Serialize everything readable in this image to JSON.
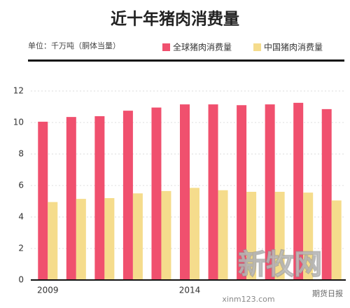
{
  "chart_data": {
    "type": "bar",
    "title": "近十年猪肉消费量",
    "subtitle": "单位：千万吨（胴体当量）",
    "categories": [
      "2009",
      null,
      null,
      null,
      null,
      "2014",
      null,
      null,
      null,
      null,
      null
    ],
    "series": [
      {
        "name": "全球猪肉消费量",
        "color": "#f0506e",
        "values": [
          10.05,
          10.35,
          10.4,
          10.75,
          10.95,
          11.15,
          11.15,
          11.1,
          11.15,
          11.25,
          10.85
        ]
      },
      {
        "name": "中国猪肉消费量",
        "color": "#f5dc8c",
        "values": [
          4.95,
          5.15,
          5.2,
          5.5,
          5.65,
          5.85,
          5.7,
          5.6,
          5.6,
          5.55,
          5.05
        ]
      }
    ],
    "ylim": [
      0,
      12
    ],
    "yticks": [
      0,
      2,
      4,
      6,
      8,
      10,
      12
    ],
    "grid": true,
    "watermarks": [
      "新牧网",
      "xinm123.com",
      "期货日报"
    ]
  }
}
